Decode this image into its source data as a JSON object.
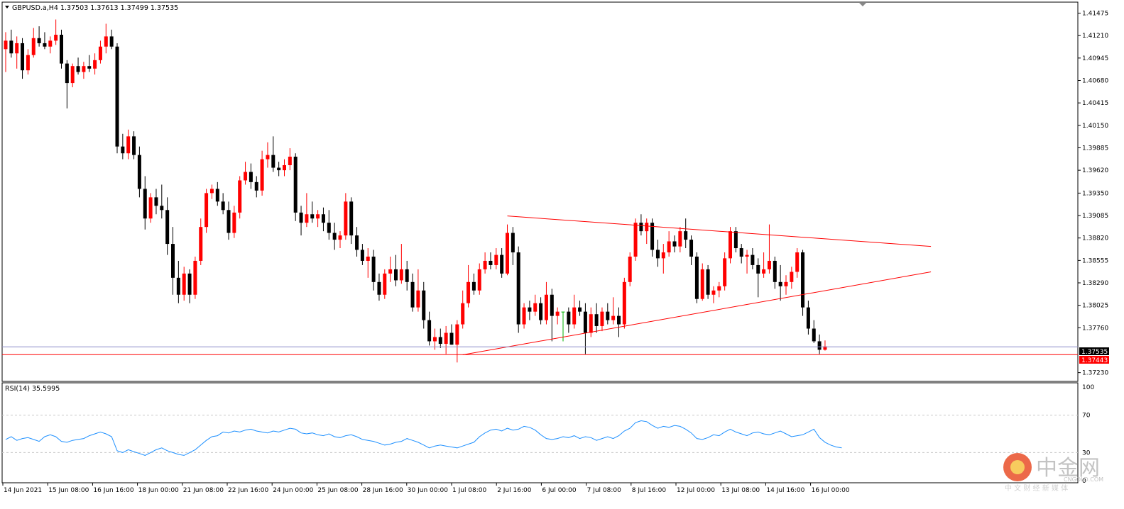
{
  "header": {
    "symbol_line": "GBPUSD.a,H4  1.37503 1.37613 1.37499 1.37535",
    "rsi_label": "RSI(14) 35.5995"
  },
  "price_axis": {
    "ticks": [
      "1.41475",
      "1.41210",
      "1.40945",
      "1.40680",
      "1.40415",
      "1.40150",
      "1.39885",
      "1.39620",
      "1.39350",
      "1.39085",
      "1.38820",
      "1.38555",
      "1.38290",
      "1.38025",
      "1.37760",
      "1.37230"
    ],
    "current_price_label": "1.37535",
    "support_label": "1.37443"
  },
  "rsi_axis": {
    "ticks": [
      "100",
      "70",
      "30",
      "0"
    ]
  },
  "time_axis": {
    "labels": [
      "14 Jun 2021",
      "15 Jun 08:00",
      "16 Jun 16:00",
      "18 Jun 00:00",
      "21 Jun 08:00",
      "22 Jun 16:00",
      "24 Jun 00:00",
      "25 Jun 08:00",
      "28 Jun 16:00",
      "30 Jun 00:00",
      "1 Jul 08:00",
      "2 Jul 16:00",
      "6 Jul 00:00",
      "7 Jul 08:00",
      "8 Jul 16:00",
      "12 Jul 00:00",
      "13 Jul 08:00",
      "14 Jul 16:00",
      "16 Jul 00:00"
    ]
  },
  "watermark": {
    "brand": "中金网",
    "domain": "CNGOLD.COM",
    "tagline": "中 文 财 经 新 媒 体"
  },
  "colors": {
    "bull": "#ff0000",
    "bear": "#000000",
    "rsi": "#1e90ff",
    "trend": "#ff0000",
    "bid_line": "#8c8cc8",
    "neutral": "#00b000"
  },
  "chart_data": [
    {
      "type": "candlestick",
      "title": "GBPUSD.a,H4",
      "ylim": [
        1.3716,
        1.4158
      ],
      "candles": [
        [
          1.4105,
          1.4125,
          1.4078,
          1.4115
        ],
        [
          1.4115,
          1.4128,
          1.4095,
          1.41
        ],
        [
          1.41,
          1.412,
          1.4082,
          1.4112
        ],
        [
          1.4112,
          1.4118,
          1.407,
          1.408
        ],
        [
          1.408,
          1.4105,
          1.4075,
          1.4098
        ],
        [
          1.4098,
          1.413,
          1.4095,
          1.4118
        ],
        [
          1.4118,
          1.4132,
          1.4108,
          1.4112
        ],
        [
          1.4112,
          1.4125,
          1.4105,
          1.4108
        ],
        [
          1.4108,
          1.412,
          1.41,
          1.4115
        ],
        [
          1.4115,
          1.414,
          1.411,
          1.4122
        ],
        [
          1.4122,
          1.4128,
          1.4082,
          1.4088
        ],
        [
          1.4088,
          1.4092,
          1.4035,
          1.4065
        ],
        [
          1.4065,
          1.4088,
          1.406,
          1.4085
        ],
        [
          1.4085,
          1.4095,
          1.4075,
          1.4078
        ],
        [
          1.4078,
          1.409,
          1.407,
          1.4085
        ],
        [
          1.4085,
          1.4098,
          1.4078,
          1.4082
        ],
        [
          1.4082,
          1.41,
          1.4075,
          1.4092
        ],
        [
          1.4092,
          1.4115,
          1.4088,
          1.4108
        ],
        [
          1.4108,
          1.4135,
          1.41,
          1.412
        ],
        [
          1.412,
          1.4128,
          1.4105,
          1.4108
        ],
        [
          1.4108,
          1.4112,
          1.3982,
          1.399
        ],
        [
          1.399,
          1.4005,
          1.3975,
          1.3982
        ],
        [
          1.3982,
          1.401,
          1.3975,
          1.4002
        ],
        [
          1.4002,
          1.4008,
          1.3975,
          1.398
        ],
        [
          1.398,
          1.399,
          1.393,
          1.394
        ],
        [
          1.394,
          1.3955,
          1.3892,
          1.3905
        ],
        [
          1.3905,
          1.3935,
          1.39,
          1.393
        ],
        [
          1.393,
          1.394,
          1.391,
          1.392
        ],
        [
          1.392,
          1.3945,
          1.3905,
          1.3915
        ],
        [
          1.3915,
          1.393,
          1.3862,
          1.3875
        ],
        [
          1.3875,
          1.3895,
          1.3815,
          1.3835
        ],
        [
          1.3835,
          1.3855,
          1.3805,
          1.3815
        ],
        [
          1.3815,
          1.3848,
          1.3808,
          1.384
        ],
        [
          1.384,
          1.3845,
          1.3805,
          1.3815
        ],
        [
          1.3815,
          1.386,
          1.381,
          1.3855
        ],
        [
          1.3855,
          1.3905,
          1.385,
          1.3895
        ],
        [
          1.3895,
          1.394,
          1.3888,
          1.3935
        ],
        [
          1.3935,
          1.3945,
          1.3928,
          1.394
        ],
        [
          1.394,
          1.3948,
          1.392,
          1.3925
        ],
        [
          1.3925,
          1.3935,
          1.391,
          1.3915
        ],
        [
          1.3915,
          1.3925,
          1.388,
          1.3888
        ],
        [
          1.3888,
          1.392,
          1.3882,
          1.3912
        ],
        [
          1.3912,
          1.3955,
          1.3905,
          1.395
        ],
        [
          1.395,
          1.3972,
          1.3945,
          1.396
        ],
        [
          1.396,
          1.397,
          1.394,
          1.3948
        ],
        [
          1.3948,
          1.3955,
          1.393,
          1.3938
        ],
        [
          1.3938,
          1.3985,
          1.3932,
          1.3975
        ],
        [
          1.3975,
          1.3995,
          1.3965,
          1.398
        ],
        [
          1.398,
          1.4002,
          1.396,
          1.3965
        ],
        [
          1.3965,
          1.3972,
          1.3955,
          1.3962
        ],
        [
          1.3962,
          1.3975,
          1.3955,
          1.3968
        ],
        [
          1.3968,
          1.3988,
          1.3962,
          1.3978
        ],
        [
          1.3978,
          1.3982,
          1.3902,
          1.3912
        ],
        [
          1.3912,
          1.392,
          1.3885,
          1.39
        ],
        [
          1.39,
          1.3935,
          1.3895,
          1.391
        ],
        [
          1.391,
          1.3925,
          1.39,
          1.3905
        ],
        [
          1.3905,
          1.3915,
          1.3895,
          1.391
        ],
        [
          1.391,
          1.3918,
          1.389,
          1.39
        ],
        [
          1.39,
          1.3915,
          1.388,
          1.3888
        ],
        [
          1.3888,
          1.39,
          1.3868,
          1.388
        ],
        [
          1.388,
          1.389,
          1.387,
          1.3885
        ],
        [
          1.3885,
          1.3935,
          1.388,
          1.3925
        ],
        [
          1.3925,
          1.393,
          1.3875,
          1.3885
        ],
        [
          1.3885,
          1.3895,
          1.386,
          1.3868
        ],
        [
          1.3868,
          1.3875,
          1.385,
          1.3855
        ],
        [
          1.3855,
          1.387,
          1.3835,
          1.386
        ],
        [
          1.386,
          1.3868,
          1.382,
          1.383
        ],
        [
          1.383,
          1.384,
          1.3808,
          1.3815
        ],
        [
          1.3815,
          1.3845,
          1.381,
          1.384
        ],
        [
          1.384,
          1.386,
          1.383,
          1.3845
        ],
        [
          1.3845,
          1.3862,
          1.3825,
          1.3832
        ],
        [
          1.3832,
          1.3875,
          1.3828,
          1.3845
        ],
        [
          1.3845,
          1.3855,
          1.382,
          1.383
        ],
        [
          1.383,
          1.384,
          1.3795,
          1.38
        ],
        [
          1.38,
          1.3845,
          1.3795,
          1.382
        ],
        [
          1.382,
          1.383,
          1.3775,
          1.3785
        ],
        [
          1.3785,
          1.3795,
          1.3755,
          1.376
        ],
        [
          1.376,
          1.3775,
          1.375,
          1.3765
        ],
        [
          1.3765,
          1.3775,
          1.3752,
          1.3757
        ],
        [
          1.3757,
          1.3778,
          1.3745,
          1.377
        ],
        [
          1.377,
          1.378,
          1.3756,
          1.3756
        ],
        [
          1.3756,
          1.3785,
          1.3735,
          1.378
        ],
        [
          1.378,
          1.382,
          1.3775,
          1.3805
        ],
        [
          1.3805,
          1.385,
          1.38,
          1.383
        ],
        [
          1.383,
          1.384,
          1.3815,
          1.382
        ],
        [
          1.382,
          1.3852,
          1.3815,
          1.3845
        ],
        [
          1.3845,
          1.3865,
          1.384,
          1.3855
        ],
        [
          1.3855,
          1.3865,
          1.3845,
          1.385
        ],
        [
          1.385,
          1.387,
          1.3845,
          1.3862
        ],
        [
          1.3862,
          1.387,
          1.3835,
          1.384
        ],
        [
          1.384,
          1.3898,
          1.3838,
          1.3888
        ],
        [
          1.3888,
          1.3895,
          1.385,
          1.3865
        ],
        [
          1.3865,
          1.3872,
          1.377,
          1.378
        ],
        [
          1.378,
          1.3805,
          1.3775,
          1.38
        ],
        [
          1.38,
          1.3808,
          1.3785,
          1.3795
        ],
        [
          1.3795,
          1.3815,
          1.379,
          1.3805
        ],
        [
          1.3805,
          1.3812,
          1.378,
          1.3785
        ],
        [
          1.3785,
          1.383,
          1.378,
          1.3815
        ],
        [
          1.3815,
          1.3822,
          1.376,
          1.379
        ],
        [
          1.379,
          1.38,
          1.378,
          1.3795
        ],
        [
          1.3795,
          1.3795,
          1.376,
          1.3795
        ],
        [
          1.3795,
          1.38,
          1.377,
          1.378
        ],
        [
          1.378,
          1.3815,
          1.3775,
          1.38
        ],
        [
          1.38,
          1.3808,
          1.379,
          1.3795
        ],
        [
          1.3795,
          1.3805,
          1.3745,
          1.377
        ],
        [
          1.377,
          1.38,
          1.3765,
          1.3792
        ],
        [
          1.3792,
          1.3805,
          1.377,
          1.3778
        ],
        [
          1.3778,
          1.38,
          1.3772,
          1.3795
        ],
        [
          1.3795,
          1.3805,
          1.378,
          1.3785
        ],
        [
          1.3785,
          1.3812,
          1.378,
          1.379
        ],
        [
          1.379,
          1.38,
          1.3765,
          1.378
        ],
        [
          1.378,
          1.3835,
          1.3775,
          1.383
        ],
        [
          1.383,
          1.3865,
          1.3825,
          1.386
        ],
        [
          1.386,
          1.3905,
          1.3855,
          1.39
        ],
        [
          1.39,
          1.391,
          1.3885,
          1.389
        ],
        [
          1.389,
          1.3905,
          1.3875,
          1.39
        ],
        [
          1.39,
          1.3905,
          1.386,
          1.3868
        ],
        [
          1.3868,
          1.388,
          1.3848,
          1.3858
        ],
        [
          1.3858,
          1.3875,
          1.384,
          1.3865
        ],
        [
          1.3865,
          1.389,
          1.386,
          1.3878
        ],
        [
          1.3878,
          1.3885,
          1.3865,
          1.3872
        ],
        [
          1.3872,
          1.3895,
          1.3865,
          1.389
        ],
        [
          1.389,
          1.3905,
          1.387,
          1.388
        ],
        [
          1.388,
          1.3885,
          1.385,
          1.386
        ],
        [
          1.386,
          1.3865,
          1.3805,
          1.381
        ],
        [
          1.381,
          1.3852,
          1.3808,
          1.3845
        ],
        [
          1.3845,
          1.385,
          1.381,
          1.3815
        ],
        [
          1.3815,
          1.3825,
          1.3805,
          1.382
        ],
        [
          1.382,
          1.383,
          1.3812,
          1.3825
        ],
        [
          1.3825,
          1.3865,
          1.382,
          1.3858
        ],
        [
          1.3858,
          1.3895,
          1.3852,
          1.389
        ],
        [
          1.389,
          1.3895,
          1.3865,
          1.387
        ],
        [
          1.387,
          1.3875,
          1.3852,
          1.386
        ],
        [
          1.386,
          1.3868,
          1.384,
          1.3862
        ],
        [
          1.3862,
          1.387,
          1.3845,
          1.385
        ],
        [
          1.385,
          1.3858,
          1.3812,
          1.384
        ],
        [
          1.384,
          1.3865,
          1.3835,
          1.3845
        ],
        [
          1.3845,
          1.3898,
          1.384,
          1.3855
        ],
        [
          1.3855,
          1.386,
          1.3822,
          1.383
        ],
        [
          1.383,
          1.385,
          1.3808,
          1.3825
        ],
        [
          1.3825,
          1.3838,
          1.3815,
          1.383
        ],
        [
          1.383,
          1.3848,
          1.3822,
          1.3842
        ],
        [
          1.3842,
          1.387,
          1.3835,
          1.3865
        ],
        [
          1.3865,
          1.3868,
          1.379,
          1.38
        ],
        [
          1.38,
          1.3808,
          1.3768,
          1.3775
        ],
        [
          1.3775,
          1.3785,
          1.3758,
          1.376
        ],
        [
          1.376,
          1.3768,
          1.3745,
          1.375
        ],
        [
          1.375,
          1.3761,
          1.3749,
          1.3754
        ]
      ],
      "trendlines": [
        {
          "from": [
            82,
            1.3744
          ],
          "to": [
            166,
            1.3842
          ]
        },
        {
          "from": [
            90,
            1.3908
          ],
          "to": [
            166,
            1.3872
          ]
        }
      ],
      "hlines": [
        1.37535,
        1.37443
      ]
    },
    {
      "type": "line",
      "title": "RSI(14)",
      "ylim": [
        0,
        100
      ],
      "levels": [
        30,
        70
      ],
      "values": [
        44,
        47,
        43,
        45,
        46,
        44,
        42,
        47,
        49,
        47,
        42,
        41,
        43,
        44,
        45,
        48,
        50,
        52,
        50,
        47,
        32,
        30,
        33,
        31,
        29,
        27,
        30,
        33,
        35,
        32,
        30,
        28,
        27,
        30,
        33,
        38,
        43,
        47,
        48,
        52,
        51,
        53,
        52,
        54,
        55,
        53,
        52,
        51,
        53,
        52,
        54,
        56,
        55,
        51,
        50,
        51,
        49,
        48,
        50,
        47,
        46,
        48,
        49,
        47,
        44,
        43,
        42,
        40,
        38,
        39,
        41,
        42,
        45,
        43,
        41,
        38,
        35,
        37,
        38,
        37,
        36,
        35,
        37,
        39,
        41,
        47,
        51,
        54,
        55,
        53,
        56,
        54,
        55,
        58,
        57,
        54,
        49,
        45,
        44,
        45,
        47,
        46,
        48,
        45,
        47,
        46,
        43,
        45,
        47,
        45,
        48,
        53,
        56,
        62,
        64,
        63,
        59,
        56,
        58,
        57,
        59,
        58,
        55,
        51,
        45,
        44,
        46,
        49,
        48,
        52,
        55,
        52,
        50,
        48,
        51,
        52,
        50,
        49,
        51,
        53,
        50,
        47,
        48,
        49,
        52,
        55,
        46,
        41,
        38,
        36,
        35
      ]
    }
  ]
}
